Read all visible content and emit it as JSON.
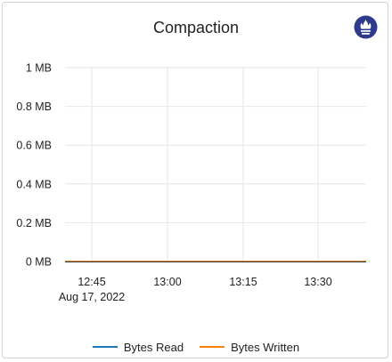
{
  "chart_data": {
    "type": "line",
    "title": "Compaction",
    "x": [
      "12:45",
      "13:00",
      "13:15",
      "13:30"
    ],
    "x_tick_labels": [
      "12:45",
      "13:00",
      "13:15",
      "13:30"
    ],
    "x_date_label": "Aug 17, 2022",
    "y_tick_labels": [
      "1 MB",
      "0.8 MB",
      "0.6 MB",
      "0.4 MB",
      "0.2 MB",
      "0 MB"
    ],
    "ylim": [
      0,
      1
    ],
    "grid": true,
    "legend_position": "bottom-center",
    "series": [
      {
        "name": "Bytes Read",
        "color": "#1f77b4",
        "values": [
          0,
          0,
          0,
          0
        ]
      },
      {
        "name": "Bytes Written",
        "color": "#ff7f0e",
        "values": [
          0,
          0,
          0,
          0
        ]
      }
    ]
  },
  "icons": {
    "header_icon": "prometheus-icon"
  },
  "colors": {
    "icon_bg": "#2e3a8c",
    "axis": "#333333",
    "grid": "#e6e6e6"
  }
}
